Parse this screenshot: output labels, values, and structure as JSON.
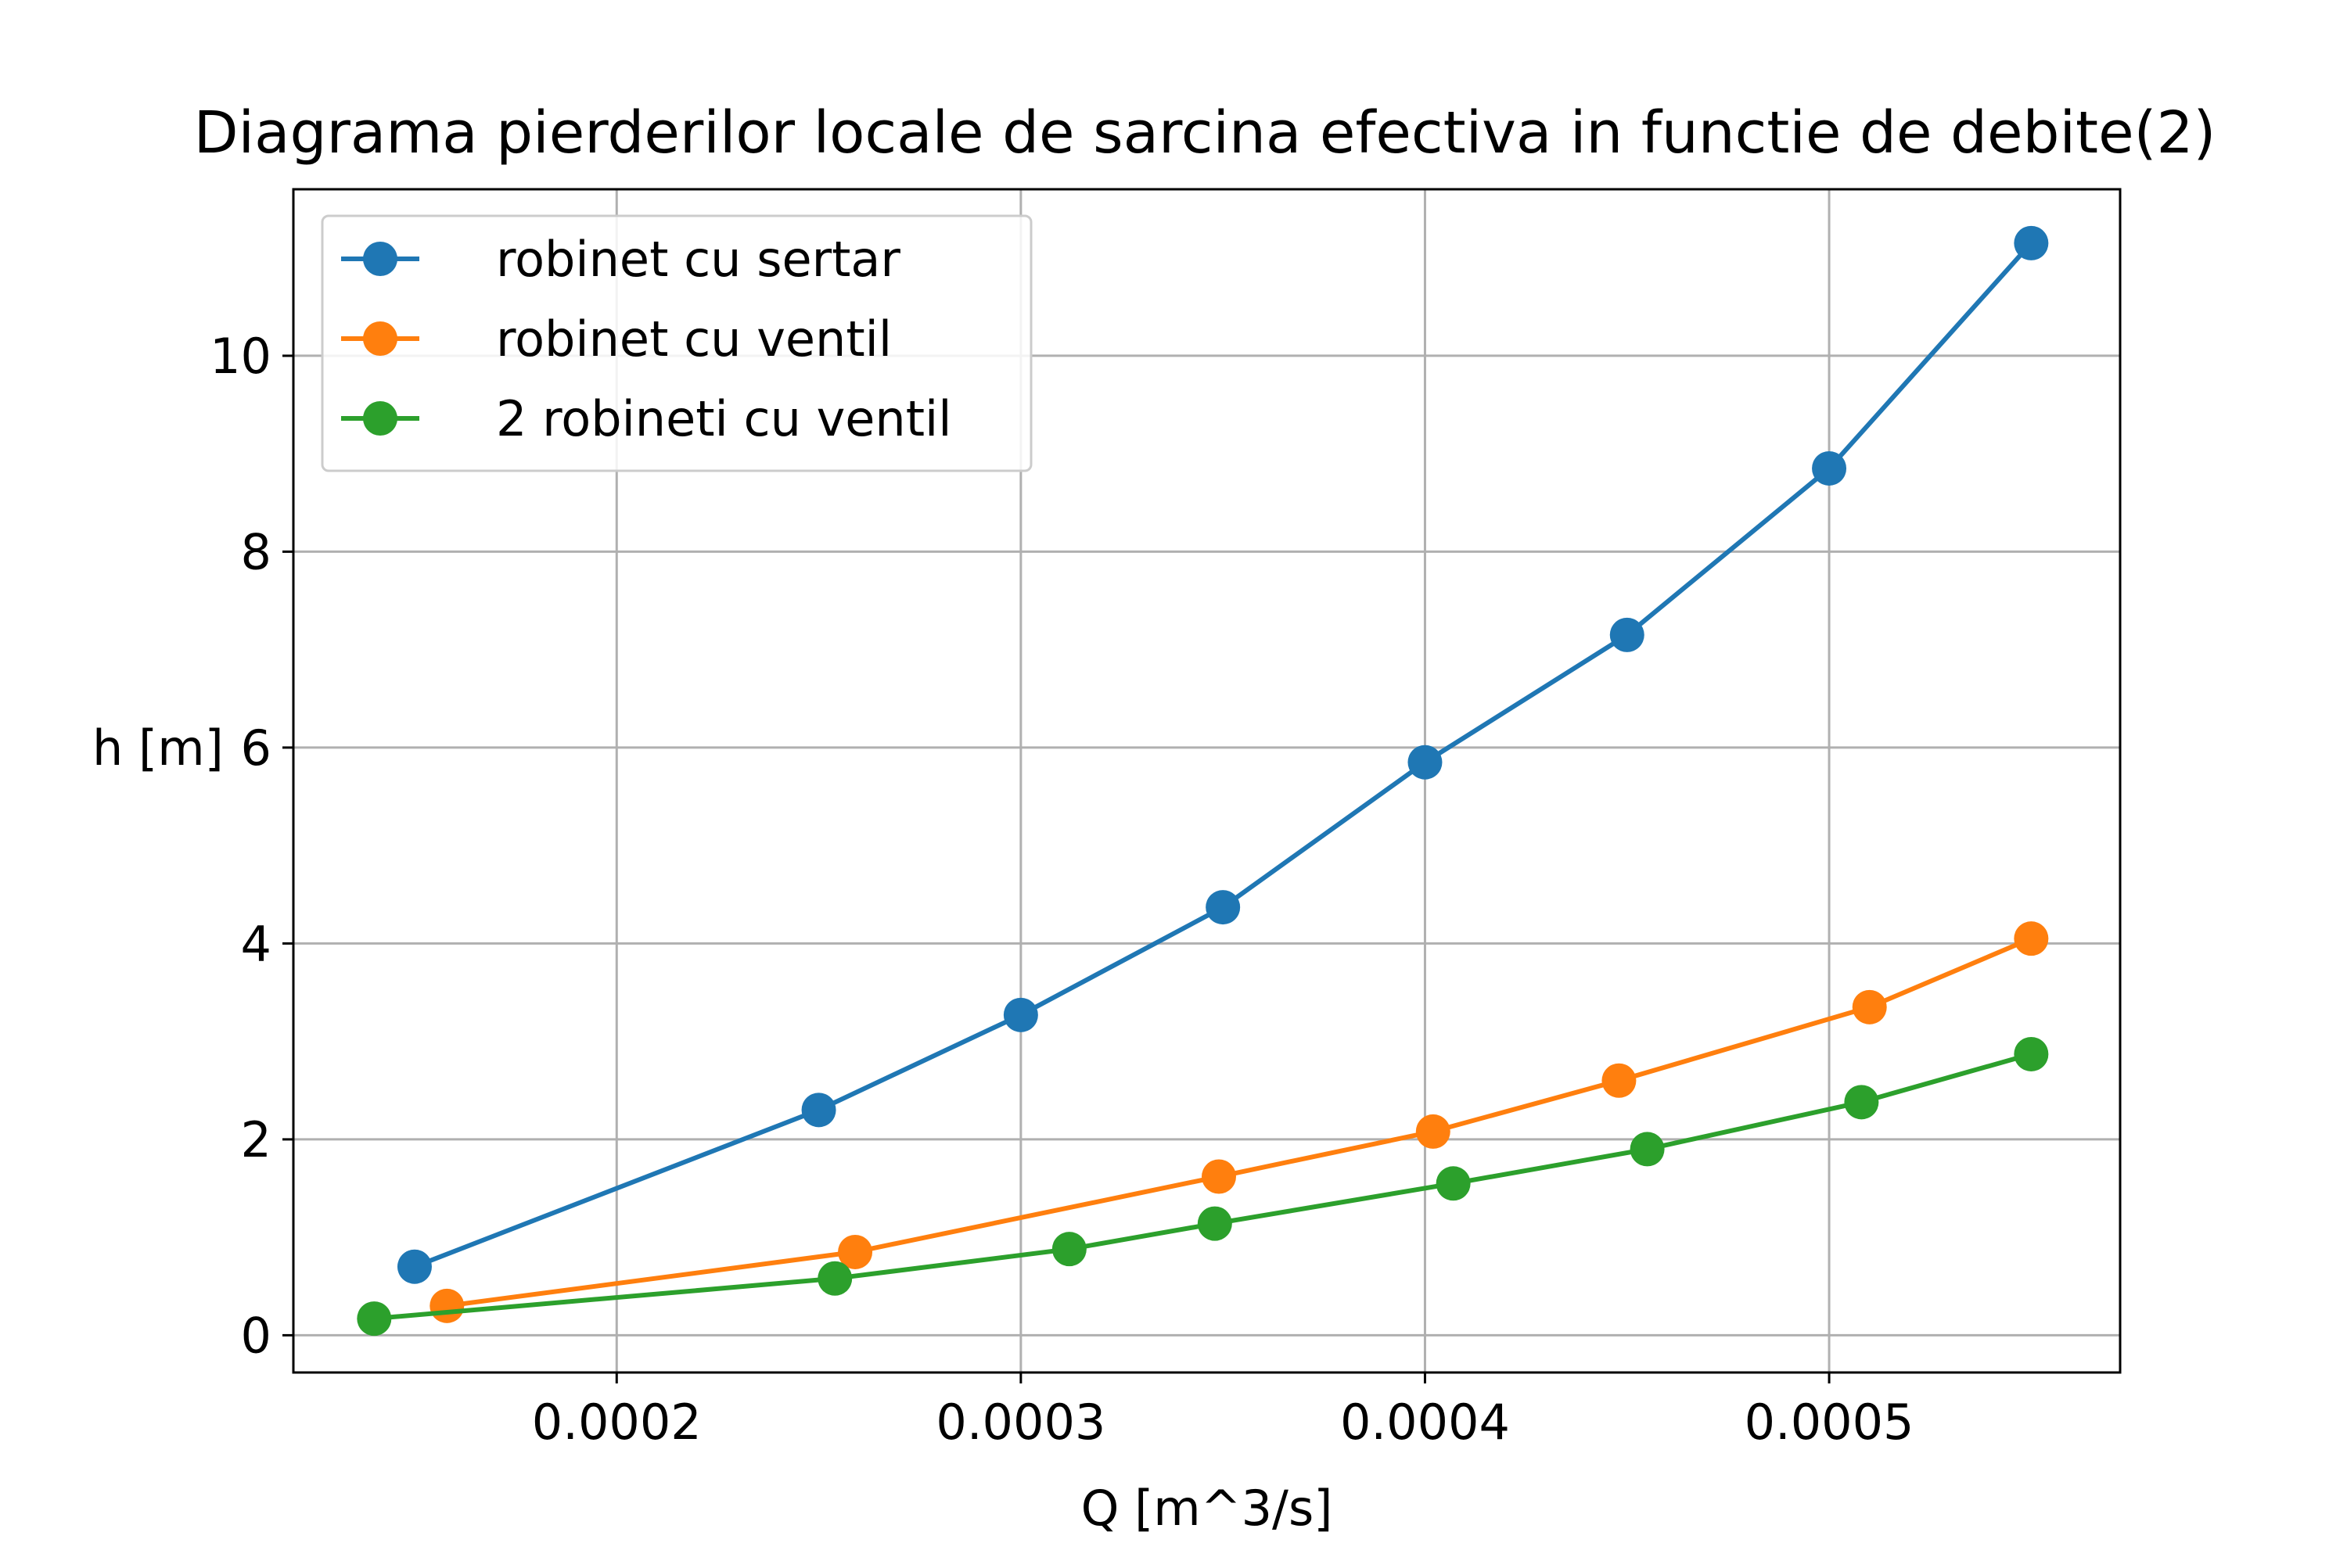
{
  "chart_data": {
    "type": "line",
    "title": "Diagrama pierderilor locale de sarcina efectiva in functie de debite(2)",
    "xlabel": "Q [m^3/s]",
    "ylabel": "h [m]",
    "xlim": [
      0.00012,
      0.000572
    ],
    "ylim": [
      -0.38,
      11.7
    ],
    "xticks": [
      0.0002,
      0.0003,
      0.0004,
      0.0005
    ],
    "xtick_labels": [
      "0.0002",
      "0.0003",
      "0.0004",
      "0.0005"
    ],
    "yticks": [
      0,
      2,
      4,
      6,
      8,
      10
    ],
    "ytick_labels": [
      "0",
      "2",
      "4",
      "6",
      "8",
      "10"
    ],
    "grid": true,
    "legend_position": "top-left",
    "series": [
      {
        "name": "robinet cu sertar",
        "color": "#1f77b4",
        "x": [
          0.00015,
          0.00025,
          0.0003,
          0.00035,
          0.0004,
          0.00045,
          0.0005,
          0.00055
        ],
        "y": [
          0.7,
          2.3,
          3.27,
          4.37,
          5.85,
          7.15,
          8.85,
          11.15
        ]
      },
      {
        "name": "robinet cu ventil",
        "color": "#ff7f0e",
        "x": [
          0.000158,
          0.000259,
          0.000349,
          0.000402,
          0.000448,
          0.00051,
          0.00055
        ],
        "y": [
          0.3,
          0.85,
          1.62,
          2.08,
          2.6,
          3.35,
          4.05
        ]
      },
      {
        "name": "2 robineti cu ventil",
        "color": "#2ca02c",
        "x": [
          0.00014,
          0.000254,
          0.000312,
          0.000348,
          0.000407,
          0.000455,
          0.000508,
          0.00055
        ],
        "y": [
          0.17,
          0.58,
          0.88,
          1.14,
          1.55,
          1.9,
          2.38,
          2.87
        ]
      }
    ]
  }
}
